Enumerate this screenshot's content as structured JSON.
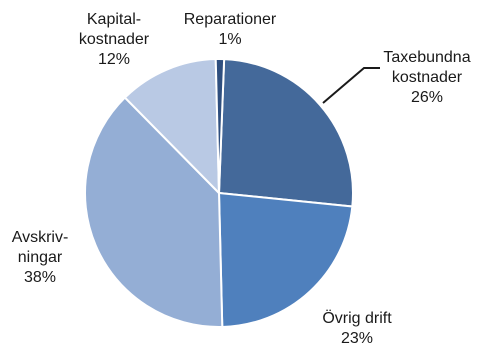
{
  "chart_data": {
    "type": "pie",
    "start_angle_deg": 0,
    "direction": "clockwise",
    "slices": [
      {
        "id": "taxebundna",
        "label_lines": [
          "Taxebundna",
          "kostnader"
        ],
        "percent_text": "26%",
        "value": 26,
        "color": "#44699a"
      },
      {
        "id": "ovrig-drift",
        "label_lines": [
          "Övrig drift"
        ],
        "percent_text": "23%",
        "value": 23,
        "color": "#4f80bd"
      },
      {
        "id": "avskrivningar",
        "label_lines": [
          "Avskriv-",
          "ningar"
        ],
        "percent_text": "38%",
        "value": 38,
        "color": "#94aed5"
      },
      {
        "id": "kapitalkostnader",
        "label_lines": [
          "Kapital-",
          "kostnader"
        ],
        "percent_text": "12%",
        "value": 12,
        "color": "#b9c9e4"
      },
      {
        "id": "reparationer",
        "label_lines": [
          "Reparationer"
        ],
        "percent_text": "1%",
        "value": 1,
        "color": "#2f4f7f"
      }
    ],
    "title": "",
    "legend": "none",
    "slice_border_color": "#ffffff",
    "leader_line_color": "#1a1a1a"
  }
}
